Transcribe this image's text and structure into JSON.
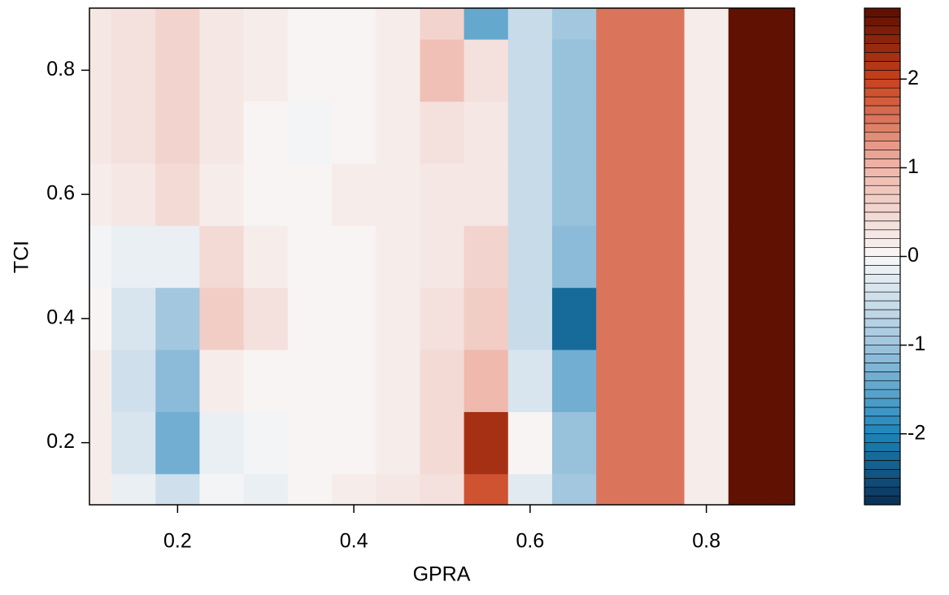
{
  "chart_data": {
    "type": "filled-contour",
    "x_label": "GPRA",
    "y_label": "TCI",
    "x": [
      0.1,
      0.15,
      0.2,
      0.25,
      0.3,
      0.35,
      0.4,
      0.45,
      0.5,
      0.55,
      0.6,
      0.65,
      0.7,
      0.75,
      0.8,
      0.85,
      0.9
    ],
    "y": [
      0.1,
      0.2,
      0.3,
      0.4,
      0.5,
      0.6,
      0.7,
      0.8,
      0.9
    ],
    "z": [
      [
        0.1,
        -0.2,
        -0.5,
        -0.1,
        -0.2,
        0.0,
        0.1,
        0.2,
        0.3,
        1.8,
        -0.3,
        -1.0,
        1.5,
        1.5,
        0.1,
        2.7,
        2.8
      ],
      [
        0.1,
        -0.4,
        -1.3,
        -0.2,
        -0.1,
        0.0,
        0.0,
        0.1,
        0.4,
        2.2,
        0.0,
        -1.1,
        1.5,
        1.5,
        0.1,
        2.7,
        2.8
      ],
      [
        0.1,
        -0.5,
        -1.2,
        0.1,
        0.0,
        0.0,
        0.0,
        0.1,
        0.4,
        0.9,
        -0.4,
        -1.3,
        1.5,
        1.5,
        0.1,
        2.7,
        2.8
      ],
      [
        0.0,
        -0.4,
        -1.0,
        0.6,
        0.3,
        0.0,
        0.0,
        0.1,
        0.3,
        0.6,
        -0.6,
        -2.2,
        1.5,
        1.5,
        0.1,
        2.7,
        2.8
      ],
      [
        -0.1,
        -0.2,
        -0.2,
        0.4,
        0.1,
        0.0,
        0.0,
        0.1,
        0.2,
        0.5,
        -0.6,
        -1.2,
        1.5,
        1.5,
        0.1,
        2.7,
        2.8
      ],
      [
        0.1,
        0.2,
        0.4,
        0.1,
        0.0,
        0.0,
        0.1,
        0.1,
        0.2,
        0.2,
        -0.6,
        -1.1,
        1.5,
        1.5,
        0.1,
        2.7,
        2.8
      ],
      [
        0.2,
        0.3,
        0.5,
        0.2,
        0.0,
        -0.1,
        0.0,
        0.1,
        0.3,
        0.2,
        -0.6,
        -1.1,
        1.5,
        1.5,
        0.1,
        2.7,
        2.8
      ],
      [
        0.2,
        0.3,
        0.5,
        0.2,
        0.1,
        0.0,
        0.0,
        0.1,
        0.8,
        0.3,
        -0.6,
        -1.1,
        1.5,
        1.5,
        0.1,
        2.7,
        2.8
      ],
      [
        0.2,
        0.3,
        0.5,
        0.2,
        0.1,
        0.0,
        0.0,
        0.1,
        0.5,
        -1.5,
        -0.6,
        -1.0,
        1.5,
        1.5,
        0.1,
        2.7,
        2.8
      ]
    ],
    "xlim": [
      0.1,
      0.9
    ],
    "xticks": [
      0.2,
      0.4,
      0.6,
      0.8
    ],
    "ylim": [
      0.1,
      0.9
    ],
    "yticks": [
      0.2,
      0.4,
      0.6,
      0.8
    ],
    "zlim": [
      -2.8,
      2.8
    ],
    "zticks": [
      -2,
      -1,
      0,
      1,
      2
    ],
    "n_levels": 56,
    "colormap": [
      {
        "value": -2.8,
        "color": "#0a2f55"
      },
      {
        "value": -2,
        "color": "#1c86bb"
      },
      {
        "value": -1,
        "color": "#9fc4de"
      },
      {
        "value": 0,
        "color": "#f7f7f7"
      },
      {
        "value": 1,
        "color": "#efb6aa"
      },
      {
        "value": 2,
        "color": "#c9401c"
      },
      {
        "value": 2.8,
        "color": "#5a0e00"
      }
    ]
  }
}
